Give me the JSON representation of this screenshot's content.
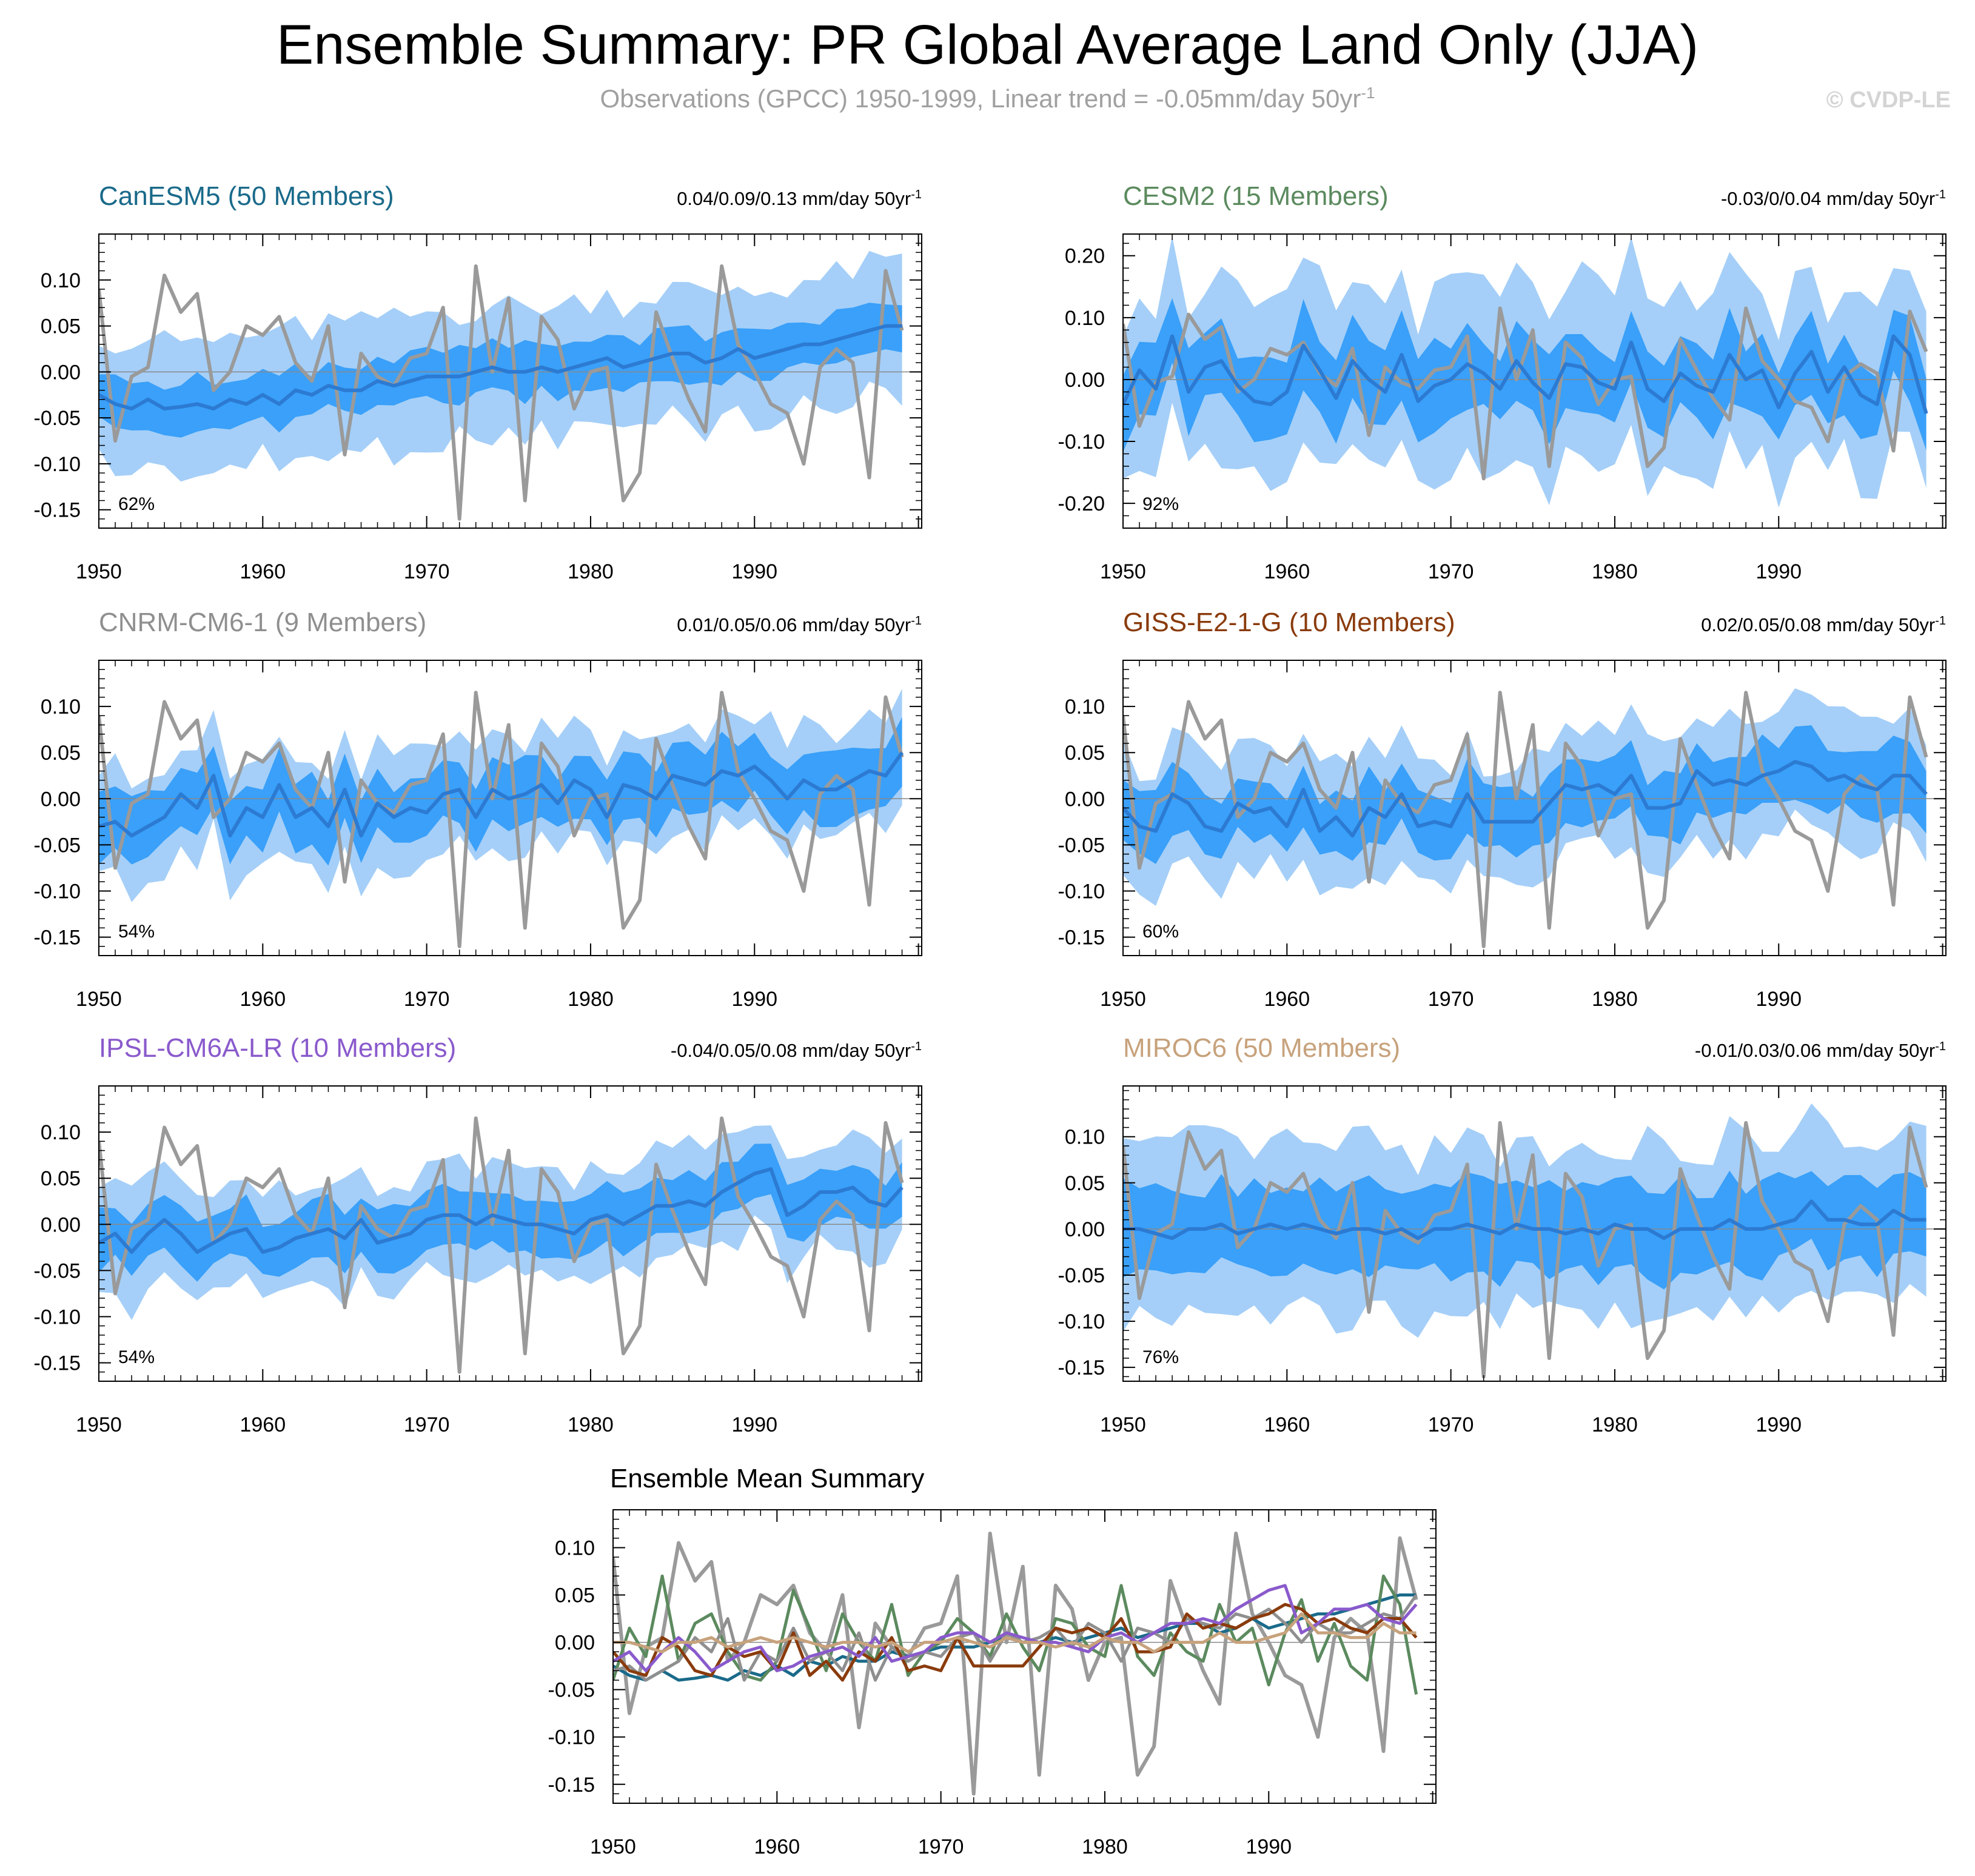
{
  "page": {
    "title": "Ensemble Summary: PR Global Average Land Only (JJA)",
    "subtitle": "Observations (GPCC) 1950-1999, Linear trend = -0.05mm/day 50yr",
    "subtitle_superscript": "-1",
    "copyright": "© CVDP-LE"
  },
  "colors": {
    "outer_band": "#a5cff8",
    "inner_band": "#3aa0f9",
    "ens_mean_line": "#2c7ad2",
    "observations": "#9a9a9a",
    "zero_line": "#888888",
    "CanESM5": "#1a6a8a",
    "CESM2": "#5b8a5e",
    "CNRM-CM6-1": "#8f8f8f",
    "GISS-E2-1-G": "#8a3b0c",
    "IPSL-CM6A-LR": "#8a5acc",
    "MIROC6": "#c7a27c"
  },
  "chart_data": [
    {
      "id": "canesm5",
      "type": "area",
      "model": "CanESM5",
      "members": 50,
      "title": "CanESM5 (50 Members)",
      "title_color": "#1a6a8a",
      "trend_label": "0.04/0.09/0.13 mm/day 50yr",
      "pct_label": "62%",
      "ylim": [
        -0.17,
        0.15
      ],
      "yticks": [
        -0.15,
        -0.1,
        -0.05,
        0.0,
        0.05,
        0.1
      ],
      "xticks": [
        1950,
        1960,
        1970,
        1980,
        1990
      ],
      "mean": [
        -0.025,
        -0.035,
        -0.04,
        -0.03,
        -0.04,
        -0.038,
        -0.035,
        -0.04,
        -0.03,
        -0.035,
        -0.025,
        -0.035,
        -0.02,
        -0.025,
        -0.015,
        -0.02,
        -0.02,
        -0.01,
        -0.015,
        -0.01,
        -0.005,
        -0.005,
        -0.005,
        0.0,
        0.005,
        0.0,
        0.0,
        0.005,
        0.0,
        0.005,
        0.01,
        0.015,
        0.005,
        0.01,
        0.015,
        0.02,
        0.02,
        0.01,
        0.015,
        0.025,
        0.015,
        0.02,
        0.025,
        0.03,
        0.03,
        0.035,
        0.04,
        0.045,
        0.05,
        0.05
      ],
      "inner_spread": 0.027,
      "outer_spread": 0.07
    },
    {
      "id": "cesm2",
      "type": "area",
      "model": "CESM2",
      "members": 15,
      "title": "CESM2 (15 Members)",
      "title_color": "#5b8a5e",
      "trend_label": "-0.03/0/0.04 mm/day 50yr",
      "pct_label": "92%",
      "ylim": [
        -0.24,
        0.235
      ],
      "yticks": [
        -0.2,
        -0.1,
        0.0,
        0.1,
        0.2
      ],
      "xticks": [
        1950,
        1960,
        1970,
        1980,
        1990
      ],
      "mean": [
        -0.04,
        0.015,
        -0.015,
        0.07,
        -0.02,
        0.02,
        0.03,
        -0.01,
        -0.035,
        -0.04,
        -0.02,
        0.055,
        0.015,
        -0.03,
        0.03,
        0.0,
        -0.02,
        0.04,
        -0.035,
        -0.01,
        0.0,
        0.025,
        0.01,
        -0.015,
        0.03,
        -0.005,
        -0.03,
        0.025,
        0.02,
        -0.005,
        -0.015,
        0.06,
        -0.015,
        -0.035,
        0.01,
        -0.01,
        -0.02,
        0.04,
        0.0,
        0.015,
        -0.045,
        0.01,
        0.045,
        -0.02,
        0.02,
        -0.025,
        -0.04,
        0.07,
        0.04,
        -0.055
      ],
      "inner_spread": 0.06,
      "outer_spread": 0.14
    },
    {
      "id": "cnrm",
      "type": "area",
      "model": "CNRM-CM6-1",
      "members": 9,
      "title": "CNRM-CM6-1 (9 Members)",
      "title_color": "#8f8f8f",
      "trend_label": "0.01/0.05/0.06 mm/day 50yr",
      "pct_label": "54%",
      "ylim": [
        -0.17,
        0.15
      ],
      "yticks": [
        -0.15,
        -0.1,
        -0.05,
        0.0,
        0.05,
        0.1
      ],
      "xticks": [
        1950,
        1960,
        1970,
        1980,
        1990
      ],
      "mean": [
        -0.03,
        -0.025,
        -0.04,
        -0.03,
        -0.02,
        0.005,
        -0.01,
        0.025,
        -0.04,
        -0.01,
        -0.02,
        0.015,
        -0.02,
        -0.01,
        -0.03,
        0.01,
        -0.04,
        -0.005,
        -0.02,
        -0.01,
        -0.015,
        0.005,
        0.01,
        -0.02,
        0.01,
        0.0,
        0.005,
        0.015,
        -0.005,
        0.02,
        0.01,
        -0.02,
        0.015,
        0.01,
        0.0,
        0.025,
        0.02,
        0.015,
        0.03,
        0.025,
        0.035,
        0.02,
        0.0,
        0.02,
        0.01,
        0.01,
        0.02,
        0.03,
        0.025,
        0.05
      ],
      "inner_spread": 0.033,
      "outer_spread": 0.06
    },
    {
      "id": "giss",
      "type": "area",
      "model": "GISS-E2-1-G",
      "members": 10,
      "title": "GISS-E2-1-G (10 Members)",
      "title_color": "#8a3b0c",
      "trend_label": "0.02/0.05/0.08 mm/day 50yr",
      "pct_label": "60%",
      "ylim": [
        -0.17,
        0.15
      ],
      "yticks": [
        -0.15,
        -0.1,
        -0.05,
        0.0,
        0.05,
        0.1
      ],
      "xticks": [
        1950,
        1960,
        1970,
        1980,
        1990
      ],
      "mean": [
        -0.01,
        -0.03,
        -0.035,
        0.005,
        -0.005,
        -0.03,
        -0.035,
        -0.005,
        -0.015,
        -0.01,
        -0.03,
        0.01,
        -0.035,
        -0.02,
        -0.04,
        -0.01,
        -0.02,
        0.005,
        -0.03,
        -0.025,
        -0.03,
        0.005,
        -0.025,
        -0.025,
        -0.025,
        -0.025,
        -0.005,
        0.015,
        0.01,
        0.015,
        0.005,
        0.025,
        -0.01,
        -0.01,
        -0.005,
        0.03,
        0.015,
        0.02,
        0.015,
        0.025,
        0.03,
        0.04,
        0.035,
        0.02,
        0.025,
        0.015,
        0.01,
        0.025,
        0.025,
        0.005
      ],
      "inner_spread": 0.035,
      "outer_spread": 0.065
    },
    {
      "id": "ipsl",
      "type": "area",
      "model": "IPSL-CM6A-LR",
      "members": 10,
      "title": "IPSL-CM6A-LR (10 Members)",
      "title_color": "#8a5acc",
      "trend_label": "-0.04/0.05/0.08 mm/day 50yr",
      "pct_label": "54%",
      "ylim": [
        -0.17,
        0.15
      ],
      "yticks": [
        -0.15,
        -0.1,
        -0.05,
        0.0,
        0.05,
        0.1
      ],
      "xticks": [
        1950,
        1960,
        1970,
        1980,
        1990
      ],
      "mean": [
        -0.02,
        -0.01,
        -0.03,
        -0.01,
        0.005,
        -0.01,
        -0.03,
        -0.02,
        -0.01,
        -0.005,
        -0.03,
        -0.025,
        -0.015,
        -0.01,
        -0.005,
        -0.015,
        0.005,
        -0.02,
        -0.015,
        -0.01,
        0.005,
        0.01,
        0.01,
        0.0,
        0.01,
        0.005,
        0.0,
        0.0,
        -0.005,
        -0.01,
        0.005,
        0.01,
        0.0,
        0.01,
        0.02,
        0.02,
        0.025,
        0.02,
        0.035,
        0.045,
        0.055,
        0.06,
        0.01,
        0.02,
        0.035,
        0.035,
        0.04,
        0.025,
        0.02,
        0.04
      ],
      "inner_spread": 0.03,
      "outer_spread": 0.06
    },
    {
      "id": "miroc6",
      "type": "area",
      "model": "MIROC6",
      "members": 50,
      "title": "MIROC6 (50 Members)",
      "title_color": "#c7a27c",
      "trend_label": "-0.01/0.03/0.06 mm/day 50yr",
      "pct_label": "76%",
      "ylim": [
        -0.165,
        0.155
      ],
      "yticks": [
        -0.15,
        -0.1,
        -0.05,
        0.0,
        0.05,
        0.1
      ],
      "xticks": [
        1950,
        1960,
        1970,
        1980,
        1990
      ],
      "mean": [
        0.0,
        0.0,
        -0.005,
        -0.01,
        0.0,
        0.0,
        0.005,
        -0.005,
        0.0,
        0.005,
        0.0,
        0.005,
        0.0,
        -0.005,
        0.0,
        0.0,
        -0.005,
        0.0,
        -0.01,
        0.0,
        0.0,
        0.005,
        0.0,
        -0.005,
        0.005,
        0.0,
        0.0,
        -0.005,
        0.0,
        -0.005,
        0.005,
        0.0,
        0.0,
        -0.01,
        0.0,
        0.0,
        0.0,
        0.01,
        0.0,
        0.0,
        0.005,
        0.01,
        0.03,
        0.01,
        0.01,
        0.005,
        0.005,
        0.02,
        0.01,
        0.01
      ],
      "inner_spread": 0.045,
      "outer_spread": 0.09
    },
    {
      "id": "summary",
      "type": "line",
      "title": "Ensemble Mean Summary",
      "ylim": [
        -0.17,
        0.14
      ],
      "yticks": [
        -0.15,
        -0.1,
        -0.05,
        0.0,
        0.05,
        0.1
      ],
      "xticks": [
        1950,
        1960,
        1970,
        1980,
        1990
      ],
      "series_models": [
        "CanESM5",
        "CESM2",
        "CNRM-CM6-1",
        "GISS-E2-1-G",
        "IPSL-CM6A-LR",
        "MIROC6"
      ]
    }
  ],
  "observations": {
    "name": "GPCC",
    "x_start": 1950,
    "values": [
      0.09,
      -0.075,
      -0.005,
      0.005,
      0.105,
      0.065,
      0.085,
      -0.02,
      0.0,
      0.05,
      0.04,
      0.06,
      0.01,
      -0.01,
      0.05,
      -0.09,
      0.02,
      -0.005,
      -0.015,
      0.015,
      0.02,
      0.07,
      -0.16,
      0.115,
      0.0,
      0.08,
      -0.14,
      0.06,
      0.035,
      -0.04,
      0.0,
      0.005,
      -0.14,
      -0.11,
      0.065,
      0.015,
      -0.03,
      -0.065,
      0.115,
      0.03,
      0.0,
      -0.035,
      -0.045,
      -0.1,
      0.005,
      0.025,
      0.01,
      -0.115,
      0.11,
      0.045
    ]
  }
}
